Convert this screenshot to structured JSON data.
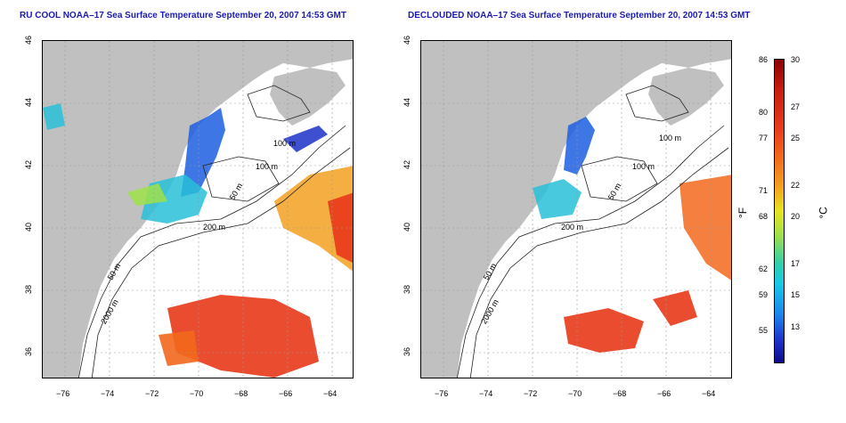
{
  "left_panel": {
    "title": "RU COOL NOAA–17 Sea Surface Temperature September 20, 2007 14:53 GMT"
  },
  "right_panel": {
    "title": "DECLOUDED NOAA–17 Sea Surface Temperature September 20, 2007 14:53 GMT"
  },
  "axes": {
    "x_ticks": [
      "−76",
      "−74",
      "−72",
      "−70",
      "−68",
      "−66",
      "−64"
    ],
    "y_ticks": [
      "46",
      "44",
      "42",
      "40",
      "38",
      "36"
    ]
  },
  "contour_labels": [
    "100 m",
    "100 m",
    "50 m",
    "200 m",
    "50 m",
    "2000 m"
  ],
  "colorbar": {
    "unit_f": "°F",
    "unit_c": "°C",
    "f_labels": [
      "86",
      "80",
      "77",
      "71",
      "68",
      "62",
      "59",
      "55"
    ],
    "c_labels": [
      "30",
      "27",
      "25",
      "22",
      "20",
      "17",
      "15",
      "13"
    ]
  },
  "colors": {
    "title": "#1b1bb0",
    "land": "#c0c0c0",
    "cold": "#1c30c8",
    "warm": "#e8381a"
  }
}
